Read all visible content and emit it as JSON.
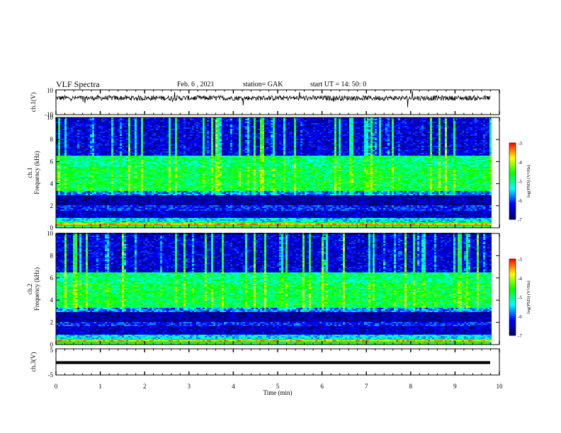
{
  "header": {
    "title": "VLF Spectra",
    "date": "Feb. 6 , 2021",
    "station": "station= GAK",
    "start_ut": "start  UT =  14: 50: 0"
  },
  "chart_data": [
    {
      "type": "line",
      "panel": "ch1_voltage",
      "ylabel": "ch.1(V)",
      "ylim": [
        -10,
        10
      ],
      "yticks": [
        "10",
        "-10"
      ],
      "xlim": [
        0,
        10
      ],
      "mean": 3.4,
      "color": "#000000"
    },
    {
      "type": "heatmap",
      "panel": "ch1_spectrogram",
      "ylabel": "ch.1\nFrequency (kHz)",
      "ylim": [
        0,
        10
      ],
      "yticks": [
        "0",
        "2",
        "4",
        "6",
        "8",
        "10"
      ],
      "xlim": [
        0,
        9.8
      ],
      "bands": [
        {
          "from": 0,
          "to": 0.6,
          "level": "high"
        },
        {
          "from": 0.9,
          "to": 3.0,
          "level": "low"
        },
        {
          "from": 3.0,
          "to": 6.5,
          "level": "mid"
        },
        {
          "from": 6.5,
          "to": 10,
          "level": "low with vertical bursts"
        }
      ],
      "colorbar": {
        "label": "log(PSD) (V²/Hz)",
        "range": [
          -7,
          -3
        ],
        "ticks": [
          "-3",
          "-4",
          "-5",
          "-6",
          "-7"
        ]
      }
    },
    {
      "type": "heatmap",
      "panel": "ch2_spectrogram",
      "ylabel": "ch.2\nFrequency (kHz)",
      "ylim": [
        0,
        10
      ],
      "yticks": [
        "0",
        "2",
        "4",
        "6",
        "8",
        "10"
      ],
      "xlim": [
        0,
        9.8
      ],
      "bands": [
        {
          "from": 0,
          "to": 0.6,
          "level": "high"
        },
        {
          "from": 0.9,
          "to": 3.0,
          "level": "low"
        },
        {
          "from": 3.0,
          "to": 6.5,
          "level": "mid"
        },
        {
          "from": 6.5,
          "to": 10,
          "level": "low with vertical bursts"
        }
      ],
      "colorbar": {
        "label": "log(PSD) (V²/Hz)",
        "range": [
          -7,
          -3
        ],
        "ticks": [
          "-3",
          "-4",
          "-5",
          "-6",
          "-7"
        ]
      }
    },
    {
      "type": "line",
      "panel": "ch3_voltage",
      "ylabel": "ch.3(V)",
      "ylim": [
        -5,
        5
      ],
      "yticks": [
        "5",
        "-5"
      ],
      "xlim": [
        0,
        10
      ],
      "mean": 0,
      "color": "#000000"
    }
  ],
  "xaxis": {
    "label": "Time  (min)",
    "ticks": [
      "0",
      "1",
      "2",
      "3",
      "4",
      "5",
      "6",
      "7",
      "8",
      "9",
      "10"
    ]
  },
  "colors": {
    "frame": "#000000",
    "colormap": [
      "#000066",
      "#0000ff",
      "#00ffff",
      "#00ff00",
      "#ffff00",
      "#ff0000",
      "#ffffff"
    ]
  }
}
